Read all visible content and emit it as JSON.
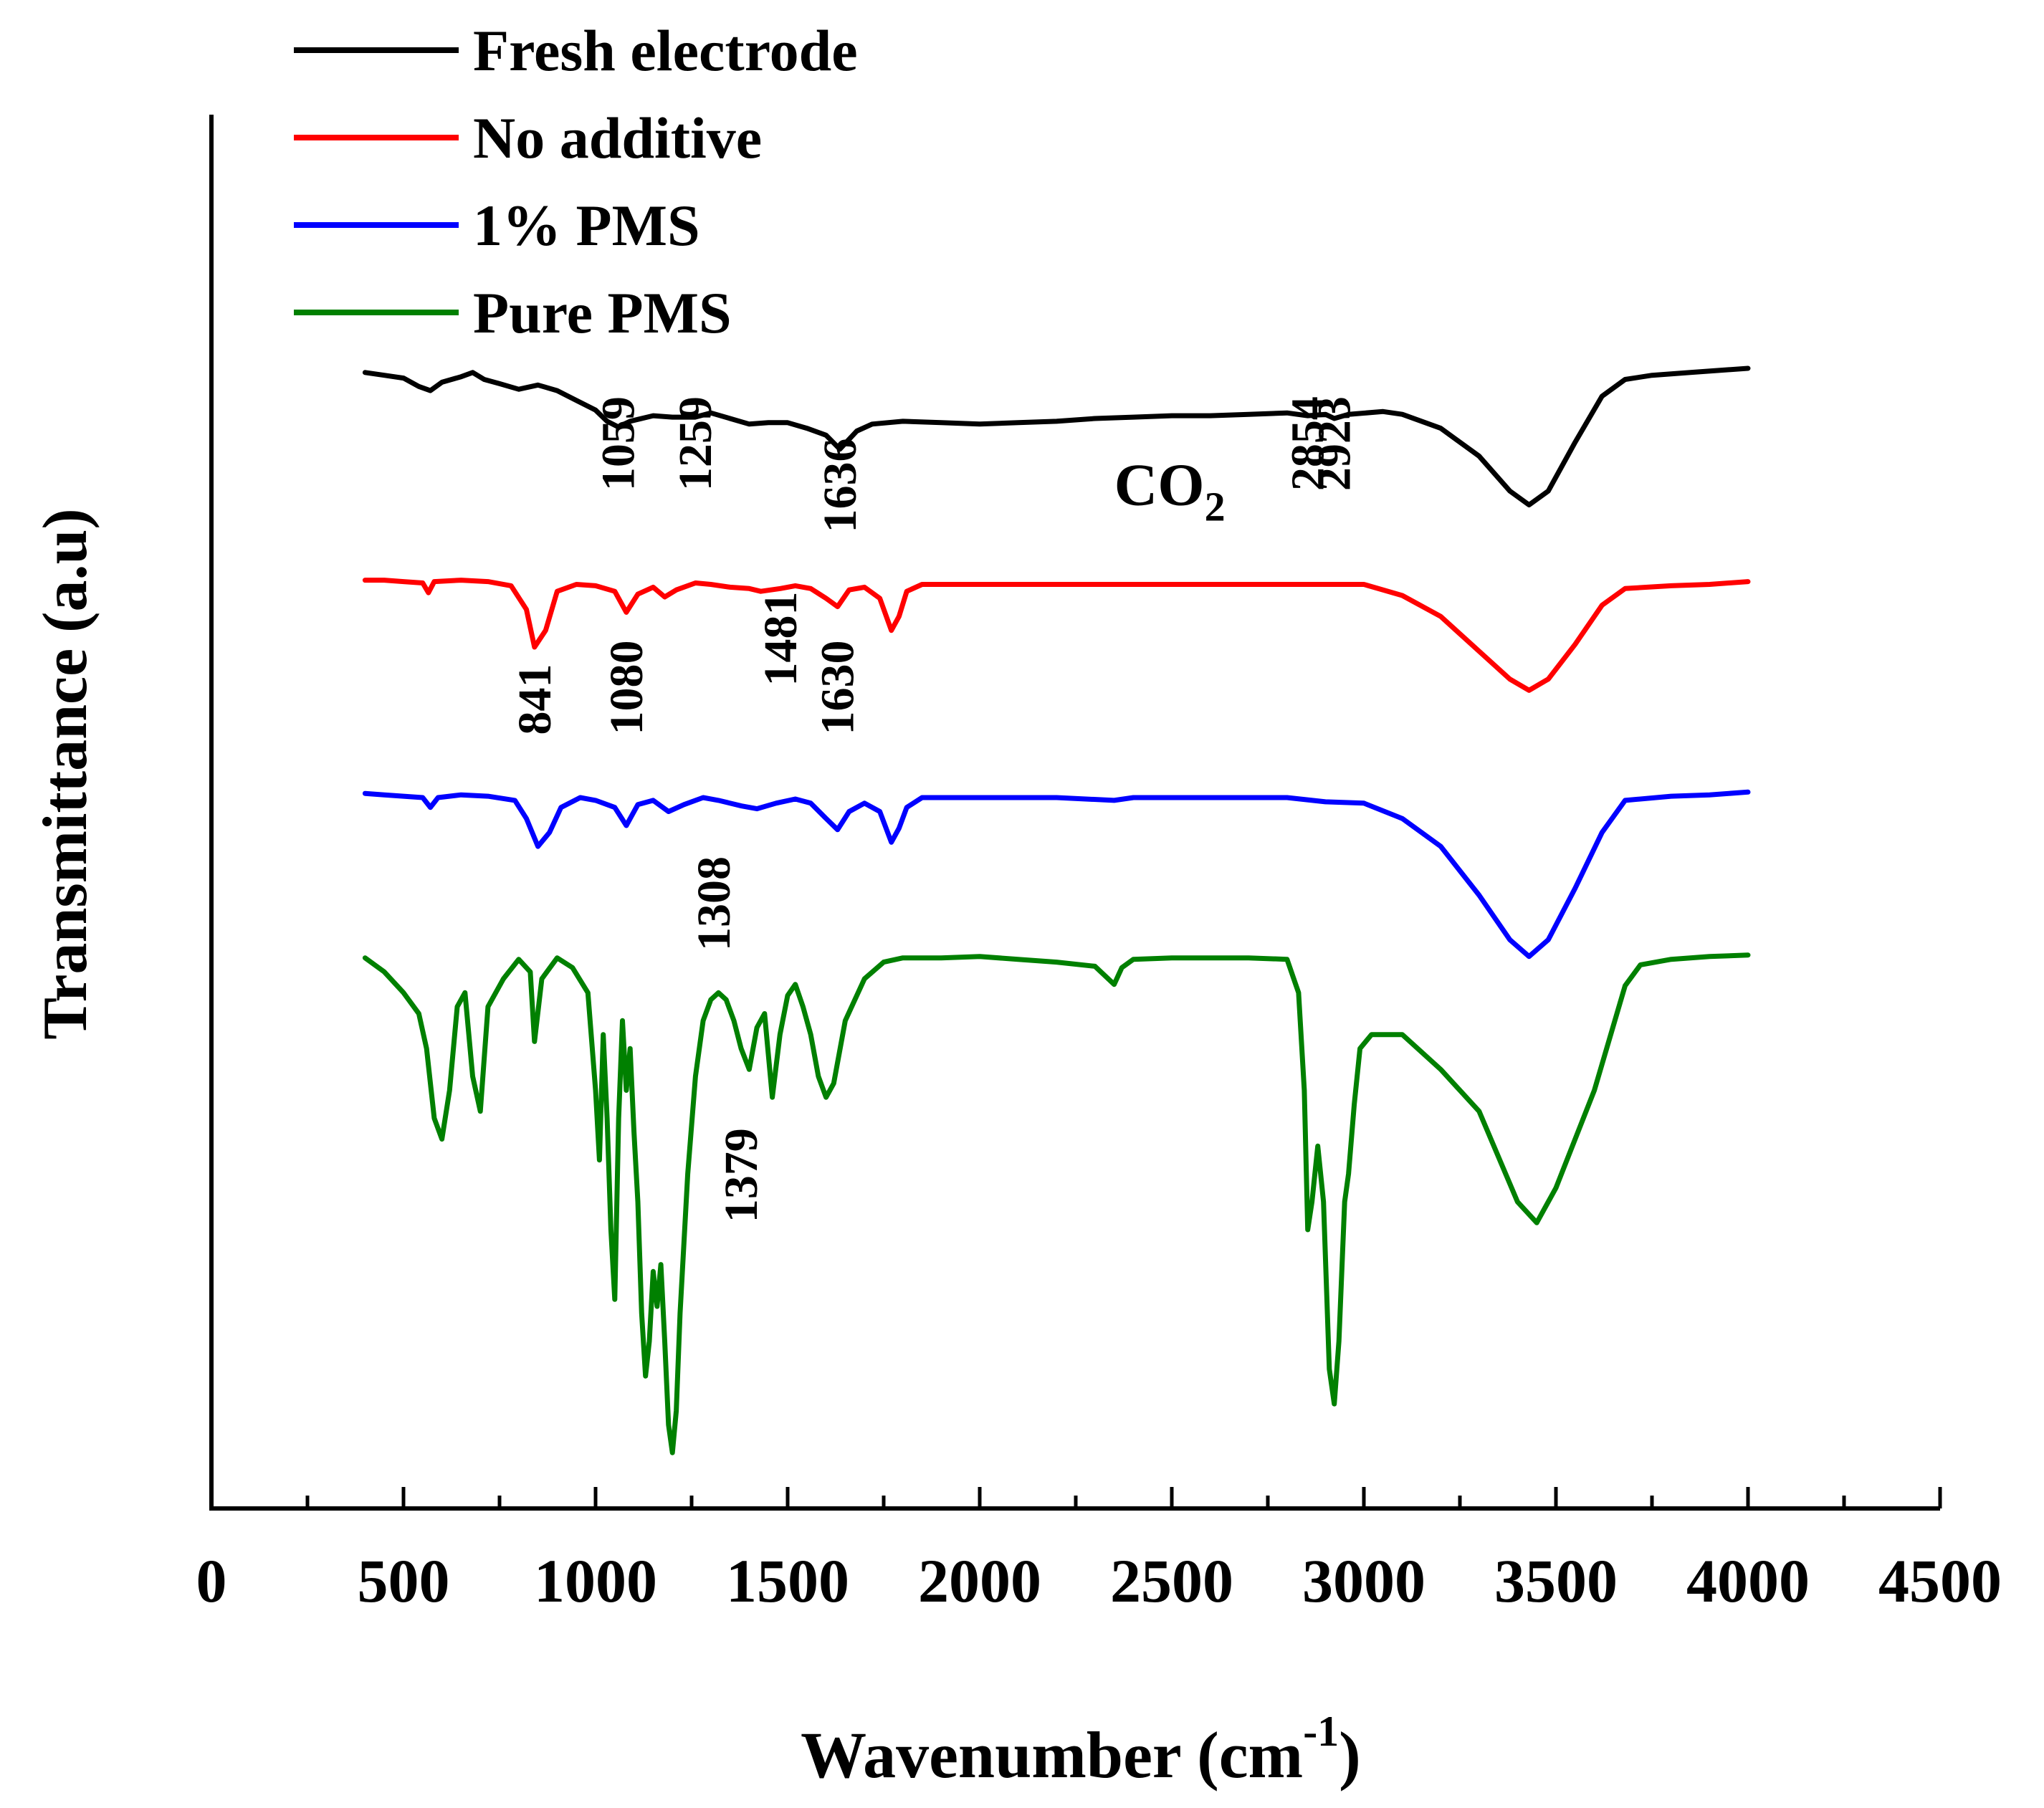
{
  "chart_data": {
    "type": "line",
    "title": "",
    "xlabel": "Wavenumber (cm",
    "xlabel_sup": "-1",
    "xlabel_close": ")",
    "ylabel": "Transmittance (a.u)",
    "xlim": [
      0,
      4500
    ],
    "ylim": [
      0,
      100
    ],
    "grid": false,
    "legend_position": "top-left",
    "x_ticks": [
      "0",
      "500",
      "1000",
      "1500",
      "2000",
      "2500",
      "3000",
      "3500",
      "4000",
      "4500"
    ],
    "x_tick_values": [
      0,
      500,
      1000,
      1500,
      2000,
      2500,
      3000,
      3500,
      4000,
      4500
    ],
    "series": [
      {
        "name": "Fresh electrode",
        "color": "#000000",
        "points": [
          [
            400,
            81.5
          ],
          [
            450,
            81.3
          ],
          [
            500,
            81.1
          ],
          [
            540,
            80.5
          ],
          [
            570,
            80.2
          ],
          [
            600,
            80.8
          ],
          [
            650,
            81.2
          ],
          [
            680,
            81.5
          ],
          [
            710,
            81.0
          ],
          [
            750,
            80.7
          ],
          [
            800,
            80.3
          ],
          [
            850,
            80.6
          ],
          [
            900,
            80.2
          ],
          [
            950,
            79.5
          ],
          [
            1000,
            78.8
          ],
          [
            1030,
            78.0
          ],
          [
            1059,
            77.6
          ],
          [
            1090,
            78.0
          ],
          [
            1150,
            78.4
          ],
          [
            1200,
            78.3
          ],
          [
            1259,
            78.3
          ],
          [
            1300,
            78.6
          ],
          [
            1350,
            78.2
          ],
          [
            1400,
            77.8
          ],
          [
            1450,
            77.9
          ],
          [
            1500,
            77.9
          ],
          [
            1550,
            77.5
          ],
          [
            1600,
            77.0
          ],
          [
            1636,
            76.0
          ],
          [
            1680,
            77.3
          ],
          [
            1720,
            77.8
          ],
          [
            1800,
            78.0
          ],
          [
            1900,
            77.9
          ],
          [
            2000,
            77.8
          ],
          [
            2100,
            77.9
          ],
          [
            2200,
            78.0
          ],
          [
            2300,
            78.2
          ],
          [
            2400,
            78.3
          ],
          [
            2500,
            78.4
          ],
          [
            2600,
            78.4
          ],
          [
            2700,
            78.5
          ],
          [
            2800,
            78.6
          ],
          [
            2854,
            78.4
          ],
          [
            2900,
            78.5
          ],
          [
            2923,
            78.2
          ],
          [
            2960,
            78.5
          ],
          [
            3050,
            78.7
          ],
          [
            3100,
            78.5
          ],
          [
            3200,
            77.5
          ],
          [
            3300,
            75.5
          ],
          [
            3380,
            73.0
          ],
          [
            3430,
            72.0
          ],
          [
            3480,
            73.0
          ],
          [
            3550,
            76.5
          ],
          [
            3620,
            79.8
          ],
          [
            3680,
            81.0
          ],
          [
            3750,
            81.3
          ],
          [
            3850,
            81.5
          ],
          [
            3950,
            81.7
          ],
          [
            4000,
            81.8
          ]
        ]
      },
      {
        "name": "No additive",
        "color": "#ff0000",
        "points": [
          [
            400,
            66.6
          ],
          [
            450,
            66.6
          ],
          [
            500,
            66.5
          ],
          [
            550,
            66.4
          ],
          [
            565,
            65.7
          ],
          [
            580,
            66.5
          ],
          [
            650,
            66.6
          ],
          [
            720,
            66.5
          ],
          [
            780,
            66.2
          ],
          [
            820,
            64.5
          ],
          [
            841,
            61.8
          ],
          [
            870,
            63.0
          ],
          [
            900,
            65.8
          ],
          [
            950,
            66.3
          ],
          [
            1000,
            66.2
          ],
          [
            1050,
            65.8
          ],
          [
            1080,
            64.3
          ],
          [
            1110,
            65.6
          ],
          [
            1150,
            66.1
          ],
          [
            1180,
            65.4
          ],
          [
            1210,
            65.9
          ],
          [
            1260,
            66.4
          ],
          [
            1300,
            66.3
          ],
          [
            1350,
            66.1
          ],
          [
            1400,
            66.0
          ],
          [
            1430,
            65.8
          ],
          [
            1481,
            66.0
          ],
          [
            1520,
            66.2
          ],
          [
            1560,
            66.0
          ],
          [
            1600,
            65.3
          ],
          [
            1630,
            64.7
          ],
          [
            1660,
            65.9
          ],
          [
            1700,
            66.1
          ],
          [
            1740,
            65.3
          ],
          [
            1770,
            63.0
          ],
          [
            1790,
            64.0
          ],
          [
            1810,
            65.8
          ],
          [
            1850,
            66.3
          ],
          [
            2000,
            66.3
          ],
          [
            2200,
            66.3
          ],
          [
            2400,
            66.3
          ],
          [
            2600,
            66.3
          ],
          [
            2800,
            66.3
          ],
          [
            3000,
            66.3
          ],
          [
            3100,
            65.5
          ],
          [
            3200,
            64.0
          ],
          [
            3300,
            61.5
          ],
          [
            3380,
            59.5
          ],
          [
            3430,
            58.7
          ],
          [
            3480,
            59.5
          ],
          [
            3550,
            62.0
          ],
          [
            3620,
            64.8
          ],
          [
            3680,
            66.0
          ],
          [
            3800,
            66.2
          ],
          [
            3900,
            66.3
          ],
          [
            4000,
            66.5
          ]
        ]
      },
      {
        "name": "1% PMS",
        "color": "#0000ff",
        "points": [
          [
            400,
            51.3
          ],
          [
            450,
            51.2
          ],
          [
            500,
            51.1
          ],
          [
            550,
            51.0
          ],
          [
            570,
            50.3
          ],
          [
            590,
            51.0
          ],
          [
            650,
            51.2
          ],
          [
            720,
            51.1
          ],
          [
            790,
            50.8
          ],
          [
            820,
            49.5
          ],
          [
            850,
            47.5
          ],
          [
            880,
            48.5
          ],
          [
            910,
            50.3
          ],
          [
            960,
            51.0
          ],
          [
            1000,
            50.8
          ],
          [
            1050,
            50.3
          ],
          [
            1080,
            49.0
          ],
          [
            1110,
            50.5
          ],
          [
            1150,
            50.8
          ],
          [
            1190,
            50.0
          ],
          [
            1230,
            50.5
          ],
          [
            1280,
            51.0
          ],
          [
            1320,
            50.8
          ],
          [
            1380,
            50.4
          ],
          [
            1420,
            50.2
          ],
          [
            1470,
            50.6
          ],
          [
            1520,
            50.9
          ],
          [
            1560,
            50.6
          ],
          [
            1600,
            49.5
          ],
          [
            1630,
            48.7
          ],
          [
            1660,
            50.0
          ],
          [
            1700,
            50.6
          ],
          [
            1740,
            50.0
          ],
          [
            1770,
            47.8
          ],
          [
            1790,
            48.8
          ],
          [
            1810,
            50.3
          ],
          [
            1850,
            51.0
          ],
          [
            2000,
            51.0
          ],
          [
            2200,
            51.0
          ],
          [
            2350,
            50.8
          ],
          [
            2400,
            51.0
          ],
          [
            2600,
            51.0
          ],
          [
            2800,
            51.0
          ],
          [
            2900,
            50.7
          ],
          [
            3000,
            50.6
          ],
          [
            3100,
            49.5
          ],
          [
            3200,
            47.5
          ],
          [
            3300,
            44.0
          ],
          [
            3380,
            40.8
          ],
          [
            3430,
            39.6
          ],
          [
            3480,
            40.8
          ],
          [
            3550,
            44.5
          ],
          [
            3620,
            48.5
          ],
          [
            3680,
            50.8
          ],
          [
            3800,
            51.1
          ],
          [
            3900,
            51.2
          ],
          [
            4000,
            51.4
          ]
        ]
      },
      {
        "name": "Pure PMS",
        "color": "#008000",
        "points": [
          [
            400,
            39.5
          ],
          [
            450,
            38.5
          ],
          [
            500,
            37.0
          ],
          [
            540,
            35.5
          ],
          [
            560,
            33.0
          ],
          [
            580,
            28.0
          ],
          [
            600,
            26.5
          ],
          [
            620,
            30.0
          ],
          [
            640,
            36.0
          ],
          [
            660,
            37.0
          ],
          [
            680,
            31.0
          ],
          [
            700,
            28.5
          ],
          [
            720,
            36.0
          ],
          [
            760,
            38.0
          ],
          [
            800,
            39.4
          ],
          [
            830,
            38.5
          ],
          [
            841,
            33.5
          ],
          [
            860,
            38.0
          ],
          [
            900,
            39.5
          ],
          [
            940,
            38.8
          ],
          [
            980,
            37.0
          ],
          [
            1000,
            30.0
          ],
          [
            1010,
            25.0
          ],
          [
            1020,
            34.0
          ],
          [
            1030,
            28.0
          ],
          [
            1040,
            20.0
          ],
          [
            1050,
            15.0
          ],
          [
            1060,
            28.0
          ],
          [
            1070,
            35.0
          ],
          [
            1080,
            30.0
          ],
          [
            1090,
            33.0
          ],
          [
            1100,
            27.0
          ],
          [
            1110,
            22.0
          ],
          [
            1120,
            14.0
          ],
          [
            1130,
            9.5
          ],
          [
            1140,
            12.0
          ],
          [
            1150,
            17.0
          ],
          [
            1160,
            14.5
          ],
          [
            1170,
            17.5
          ],
          [
            1180,
            12.0
          ],
          [
            1190,
            6.0
          ],
          [
            1200,
            4.0
          ],
          [
            1210,
            7.0
          ],
          [
            1220,
            14.0
          ],
          [
            1240,
            24.0
          ],
          [
            1260,
            31.0
          ],
          [
            1280,
            35.0
          ],
          [
            1300,
            36.5
          ],
          [
            1320,
            37.0
          ],
          [
            1340,
            36.5
          ],
          [
            1360,
            35.0
          ],
          [
            1379,
            33.0
          ],
          [
            1400,
            31.5
          ],
          [
            1420,
            34.5
          ],
          [
            1440,
            35.5
          ],
          [
            1460,
            29.5
          ],
          [
            1480,
            34.0
          ],
          [
            1500,
            36.8
          ],
          [
            1520,
            37.6
          ],
          [
            1540,
            36.0
          ],
          [
            1560,
            34.0
          ],
          [
            1580,
            31.0
          ],
          [
            1600,
            29.5
          ],
          [
            1620,
            30.5
          ],
          [
            1650,
            35.0
          ],
          [
            1700,
            38.0
          ],
          [
            1750,
            39.2
          ],
          [
            1800,
            39.5
          ],
          [
            1900,
            39.5
          ],
          [
            2000,
            39.6
          ],
          [
            2100,
            39.4
          ],
          [
            2200,
            39.2
          ],
          [
            2300,
            38.9
          ],
          [
            2350,
            37.6
          ],
          [
            2370,
            38.8
          ],
          [
            2400,
            39.4
          ],
          [
            2500,
            39.5
          ],
          [
            2600,
            39.5
          ],
          [
            2700,
            39.5
          ],
          [
            2800,
            39.4
          ],
          [
            2830,
            37.0
          ],
          [
            2845,
            30.0
          ],
          [
            2854,
            20.0
          ],
          [
            2865,
            22.0
          ],
          [
            2880,
            26.0
          ],
          [
            2895,
            22.0
          ],
          [
            2910,
            10.0
          ],
          [
            2923,
            7.5
          ],
          [
            2935,
            12.0
          ],
          [
            2950,
            22.0
          ],
          [
            2960,
            24.0
          ],
          [
            2975,
            29.0
          ],
          [
            2990,
            33.0
          ],
          [
            3020,
            34.0
          ],
          [
            3100,
            34.0
          ],
          [
            3200,
            31.5
          ],
          [
            3300,
            28.5
          ],
          [
            3400,
            22.0
          ],
          [
            3450,
            20.5
          ],
          [
            3500,
            23.0
          ],
          [
            3600,
            30.0
          ],
          [
            3680,
            37.5
          ],
          [
            3720,
            39.0
          ],
          [
            3800,
            39.4
          ],
          [
            3900,
            39.6
          ],
          [
            4000,
            39.7
          ]
        ]
      }
    ],
    "annotations": [
      {
        "label": "1059",
        "x": 1059,
        "anchor_y": 73.0,
        "rotation": -90
      },
      {
        "label": "1259",
        "x": 1259,
        "anchor_y": 73.0,
        "rotation": -90
      },
      {
        "label": "1636",
        "x": 1636,
        "anchor_y": 70.0,
        "rotation": -90
      },
      {
        "label": "2854",
        "x": 2854,
        "anchor_y": 73.0,
        "rotation": -90
      },
      {
        "label": "2923",
        "x": 2923,
        "anchor_y": 73.0,
        "rotation": -90
      },
      {
        "label": "841",
        "x": 841,
        "anchor_y": 55.5,
        "rotation": -90
      },
      {
        "label": "1080",
        "x": 1080,
        "anchor_y": 55.5,
        "rotation": -90
      },
      {
        "label": "1481",
        "x": 1481,
        "anchor_y": 59.0,
        "rotation": -90
      },
      {
        "label": "1630",
        "x": 1630,
        "anchor_y": 55.5,
        "rotation": -90
      },
      {
        "label": "1308",
        "x": 1308,
        "anchor_y": 40.0,
        "rotation": -90
      },
      {
        "label": "1379",
        "x": 1379,
        "anchor_y": 20.5,
        "rotation": -90
      }
    ],
    "co2_label": {
      "main": "CO",
      "sub": "2",
      "x": 2350,
      "y": 72.0
    }
  }
}
